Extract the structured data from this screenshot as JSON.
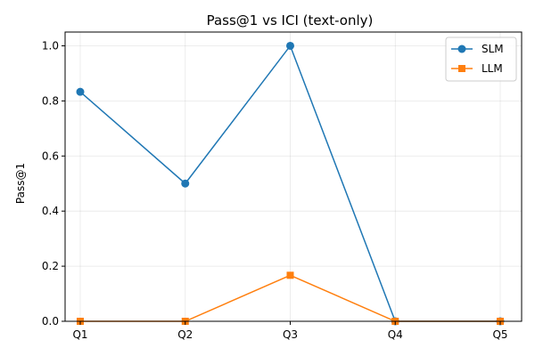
{
  "chart_data": {
    "type": "line",
    "title": "Pass@1 vs ICI (text-only)",
    "xlabel": "",
    "ylabel": "Pass@1",
    "categories": [
      "Q1",
      "Q2",
      "Q3",
      "Q4",
      "Q5"
    ],
    "ylim": [
      0,
      1.05
    ],
    "yticks": [
      0.0,
      0.2,
      0.4,
      0.6,
      0.8,
      1.0
    ],
    "ytick_labels": [
      "0.0",
      "0.2",
      "0.4",
      "0.6",
      "0.8",
      "1.0"
    ],
    "grid": true,
    "legend_position": "top-right",
    "series": [
      {
        "name": "SLM",
        "color": "#1f77b4",
        "marker": "circle",
        "values": [
          0.833,
          0.5,
          1.0,
          0.0,
          0.0
        ]
      },
      {
        "name": "LLM",
        "color": "#ff7f0e",
        "marker": "square",
        "values": [
          0.0,
          0.0,
          0.167,
          0.0,
          0.0
        ]
      }
    ]
  }
}
